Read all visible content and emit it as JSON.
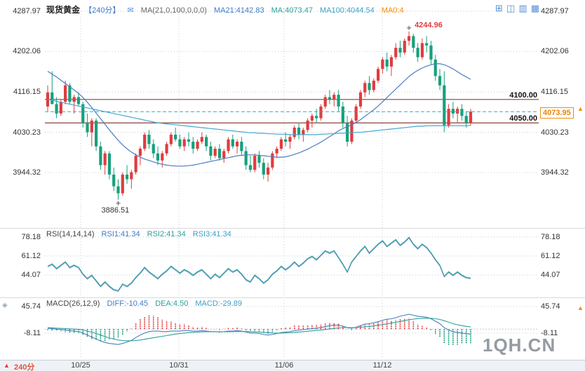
{
  "header": {
    "symbol": "现货黄金",
    "period": "【240分】",
    "ma_settings": "MA(21,0,100,0,0,0)",
    "legend": {
      "ma21": "MA21:4142.83",
      "ma": "MA:4073.47",
      "ma100": "MA100:4044.54",
      "ma0": "MA0:4"
    }
  },
  "toolbar": {
    "layout_icons": [
      "layout-single",
      "layout-split-2",
      "layout-rows",
      "layout-grid-4"
    ]
  },
  "rsi_header": {
    "title": "RSI(14,14,14)",
    "rsi1": "RSI1:41.34",
    "rsi2": "RSI2:41.34",
    "rsi3": "RSI3:41.34"
  },
  "macd_header": {
    "title": "MACD(26,12,9)",
    "diff": "DIFF:-10.45",
    "dea": "DEA:4.50",
    "macd": "MACD:-29.89"
  },
  "levels": {
    "upper": "4100.00",
    "lower": "4050.00"
  },
  "price_marker": {
    "value_label": "4073.95"
  },
  "annotations": {
    "high": "4244.96",
    "low": "3886.51"
  },
  "footer": {
    "period": "240分",
    "dates": [
      "10/25",
      "10/31",
      "11/06",
      "11/12"
    ]
  },
  "watermark": "1QH.CN",
  "colors": {
    "up": "#e03c3f",
    "down": "#17a07c",
    "ma21": "#4a7ebf",
    "ma100": "#45a8cc",
    "level_line": "#8a4038",
    "price_line": "#2fa9c9",
    "grid": "#c8cdd4",
    "accent_orange": "#f08c0a"
  },
  "chart_data": [
    {
      "type": "candlestick",
      "title": "现货黄金 240分",
      "y_ticks": [
        4287.97,
        4202.06,
        4116.15,
        4030.23,
        3944.32
      ],
      "x_ticks": [
        "10/25",
        "10/31",
        "11/06",
        "11/12"
      ],
      "hlines": [
        4100,
        4050
      ],
      "current_price": 4073.95,
      "high_annotation": 4244.96,
      "high_index": 82,
      "low_annotation": 3886.51,
      "low_index": 16,
      "candles": [
        [
          4085,
          4130,
          4075,
          4115
        ],
        [
          4115,
          4160,
          4100,
          4090
        ],
        [
          4090,
          4105,
          4060,
          4070
        ],
        [
          4070,
          4100,
          4065,
          4095
        ],
        [
          4095,
          4140,
          4090,
          4130
        ],
        [
          4130,
          4135,
          4090,
          4095
        ],
        [
          4095,
          4110,
          4070,
          4105
        ],
        [
          4105,
          4115,
          4085,
          4090
        ],
        [
          4090,
          4095,
          4040,
          4050
        ],
        [
          4050,
          4070,
          4020,
          4030
        ],
        [
          4030,
          4060,
          4000,
          4055
        ],
        [
          4055,
          4060,
          3990,
          4000
        ],
        [
          4000,
          4010,
          3950,
          3960
        ],
        [
          3960,
          3990,
          3940,
          3985
        ],
        [
          3985,
          3990,
          3930,
          3940
        ],
        [
          3940,
          3955,
          3905,
          3915
        ],
        [
          3915,
          3930,
          3886.51,
          3900
        ],
        [
          3900,
          3945,
          3895,
          3940
        ],
        [
          3940,
          3960,
          3920,
          3930
        ],
        [
          3930,
          3950,
          3910,
          3945
        ],
        [
          3945,
          3985,
          3940,
          3980
        ],
        [
          3980,
          4000,
          3960,
          3995
        ],
        [
          3995,
          4030,
          3990,
          4025
        ],
        [
          4025,
          4035,
          3995,
          4005
        ],
        [
          4005,
          4015,
          3975,
          3985
        ],
        [
          3985,
          4000,
          3960,
          3970
        ],
        [
          3970,
          3990,
          3955,
          3985
        ],
        [
          3985,
          4010,
          3980,
          4005
        ],
        [
          4005,
          4030,
          4000,
          4025
        ],
        [
          4025,
          4040,
          4010,
          4015
        ],
        [
          4015,
          4025,
          3995,
          4000
        ],
        [
          4000,
          4020,
          3990,
          4015
        ],
        [
          4015,
          4030,
          4000,
          4010
        ],
        [
          4010,
          4020,
          3985,
          3995
        ],
        [
          3995,
          4015,
          3990,
          4010
        ],
        [
          4010,
          4030,
          4005,
          4020
        ],
        [
          4020,
          4025,
          3990,
          4000
        ],
        [
          4000,
          4010,
          3970,
          3980
        ],
        [
          3980,
          4000,
          3975,
          3995
        ],
        [
          3995,
          4005,
          3970,
          3975
        ],
        [
          3975,
          3995,
          3965,
          3990
        ],
        [
          3990,
          4020,
          3985,
          4015
        ],
        [
          4015,
          4025,
          3995,
          4000
        ],
        [
          4000,
          4015,
          3985,
          4010
        ],
        [
          4010,
          4020,
          3980,
          3990
        ],
        [
          3990,
          4000,
          3950,
          3960
        ],
        [
          3960,
          3980,
          3945,
          3950
        ],
        [
          3950,
          3985,
          3945,
          3980
        ],
        [
          3980,
          3990,
          3955,
          3965
        ],
        [
          3965,
          3975,
          3930,
          3940
        ],
        [
          3940,
          3965,
          3925,
          3955
        ],
        [
          3955,
          3990,
          3950,
          3985
        ],
        [
          3985,
          4000,
          3975,
          3995
        ],
        [
          3995,
          4020,
          3990,
          4015
        ],
        [
          4015,
          4030,
          4000,
          4010
        ],
        [
          4010,
          4025,
          3995,
          4020
        ],
        [
          4020,
          4045,
          4015,
          4040
        ],
        [
          4040,
          4050,
          4015,
          4025
        ],
        [
          4025,
          4040,
          4010,
          4035
        ],
        [
          4035,
          4060,
          4030,
          4055
        ],
        [
          4055,
          4070,
          4040,
          4065
        ],
        [
          4065,
          4080,
          4050,
          4060
        ],
        [
          4060,
          4090,
          4055,
          4085
        ],
        [
          4085,
          4110,
          4080,
          4105
        ],
        [
          4105,
          4120,
          4090,
          4100
        ],
        [
          4100,
          4115,
          4085,
          4110
        ],
        [
          4110,
          4120,
          4075,
          4085
        ],
        [
          4085,
          4095,
          4040,
          4050
        ],
        [
          4050,
          4065,
          4000,
          4010
        ],
        [
          4010,
          4060,
          4005,
          4055
        ],
        [
          4055,
          4090,
          4050,
          4085
        ],
        [
          4085,
          4120,
          4080,
          4115
        ],
        [
          4115,
          4140,
          4105,
          4135
        ],
        [
          4135,
          4150,
          4110,
          4120
        ],
        [
          4120,
          4145,
          4115,
          4140
        ],
        [
          4140,
          4170,
          4135,
          4165
        ],
        [
          4165,
          4190,
          4155,
          4185
        ],
        [
          4185,
          4200,
          4160,
          4170
        ],
        [
          4170,
          4195,
          4150,
          4190
        ],
        [
          4190,
          4220,
          4185,
          4210
        ],
        [
          4210,
          4225,
          4190,
          4200
        ],
        [
          4200,
          4230,
          4195,
          4225
        ],
        [
          4225,
          4244.96,
          4215,
          4235
        ],
        [
          4235,
          4240,
          4200,
          4210
        ],
        [
          4210,
          4220,
          4180,
          4190
        ],
        [
          4190,
          4230,
          4185,
          4220
        ],
        [
          4220,
          4235,
          4200,
          4215
        ],
        [
          4215,
          4225,
          4175,
          4185
        ],
        [
          4185,
          4195,
          4140,
          4150
        ],
        [
          4150,
          4165,
          4120,
          4130
        ],
        [
          4130,
          4160,
          4030,
          4045
        ],
        [
          4045,
          4090,
          4040,
          4080
        ],
        [
          4080,
          4095,
          4060,
          4070
        ],
        [
          4070,
          4085,
          4050,
          4080
        ],
        [
          4080,
          4090,
          4055,
          4065
        ],
        [
          4065,
          4075,
          4040,
          4050
        ],
        [
          4050,
          4080,
          4045,
          4073.95
        ]
      ],
      "ma21": [
        4160,
        4154,
        4148,
        4141,
        4134,
        4127,
        4120,
        4113,
        4104,
        4094,
        4083,
        4071,
        4059,
        4047,
        4035,
        4024,
        4013,
        4003,
        3995,
        3988,
        3982,
        3977,
        3973,
        3970,
        3967,
        3964,
        3962,
        3960,
        3959,
        3958,
        3958,
        3958,
        3959,
        3960,
        3962,
        3964,
        3966,
        3968,
        3970,
        3972,
        3974,
        3976,
        3978,
        3980,
        3981,
        3982,
        3982,
        3982,
        3981,
        3980,
        3979,
        3978,
        3977,
        3977,
        3978,
        3980,
        3983,
        3986,
        3990,
        3994,
        3999,
        4004,
        4009,
        4015,
        4021,
        4027,
        4033,
        4038,
        4042,
        4046,
        4051,
        4057,
        4064,
        4071,
        4078,
        4086,
        4095,
        4104,
        4113,
        4122,
        4131,
        4140,
        4149,
        4156,
        4162,
        4167,
        4171,
        4174,
        4176,
        4176,
        4174,
        4170,
        4165,
        4159,
        4153,
        4148,
        4142.83
      ],
      "ma100": [
        4100,
        4098,
        4096,
        4094,
        4092,
        4090,
        4088,
        4086,
        4084,
        4082,
        4080,
        4078,
        4076,
        4074,
        4072,
        4070,
        4068,
        4066,
        4064,
        4062,
        4060,
        4058,
        4056,
        4054,
        4052,
        4050,
        4049,
        4048,
        4047,
        4046,
        4045,
        4044,
        4043,
        4042,
        4041,
        4040,
        4039,
        4038,
        4037,
        4036,
        4035,
        4034,
        4033,
        4032,
        4031,
        4030,
        4029,
        4029,
        4028,
        4028,
        4027,
        4027,
        4026,
        4026,
        4026,
        4025,
        4025,
        4025,
        4025,
        4025,
        4025,
        4025,
        4026,
        4026,
        4027,
        4027,
        4028,
        4028,
        4029,
        4029,
        4030,
        4030,
        4031,
        4032,
        4033,
        4034,
        4035,
        4036,
        4037,
        4038,
        4039,
        4040,
        4041,
        4042,
        4043,
        4043,
        4044,
        4044,
        4044,
        4044,
        4044,
        4044,
        4044,
        4044,
        4044,
        4044,
        4044.54
      ]
    },
    {
      "type": "line",
      "name": "RSI(14,14,14)",
      "y_ticks": [
        78.18,
        61.12,
        44.07
      ],
      "current": [
        41.34,
        41.34,
        41.34
      ],
      "values": [
        52,
        54,
        50,
        53,
        56,
        51,
        53,
        51,
        45,
        41,
        44,
        39,
        34,
        38,
        34,
        31,
        30,
        36,
        34,
        37,
        42,
        46,
        51,
        47,
        44,
        41,
        45,
        48,
        52,
        49,
        46,
        49,
        47,
        44,
        47,
        49,
        45,
        41,
        45,
        42,
        46,
        50,
        47,
        49,
        45,
        40,
        38,
        44,
        41,
        37,
        40,
        45,
        48,
        52,
        49,
        52,
        56,
        52,
        55,
        59,
        61,
        58,
        62,
        66,
        64,
        66,
        60,
        54,
        47,
        56,
        61,
        66,
        70,
        64,
        68,
        72,
        75,
        70,
        73,
        76,
        71,
        74,
        78,
        72,
        68,
        72,
        69,
        64,
        58,
        53,
        43,
        47,
        44,
        47,
        44,
        42,
        41.34
      ]
    },
    {
      "type": "macd",
      "name": "MACD(26,12,9)",
      "y_ticks": [
        45.74,
        -8.11
      ],
      "current": {
        "diff": -10.45,
        "dea": 4.5,
        "macd": -29.89
      },
      "hist_formula": "2*(diff-dea)",
      "diff": [
        2,
        1,
        0,
        -1,
        -2,
        -3,
        -4,
        -5,
        -8,
        -12,
        -16,
        -20,
        -24,
        -27,
        -29,
        -30,
        -31,
        -29,
        -26,
        -23,
        -17,
        -12,
        -8,
        -5,
        -4,
        -4,
        -5,
        -5,
        -4,
        -4,
        -4,
        -3,
        -3,
        -4,
        -4,
        -3,
        -4,
        -5,
        -5,
        -6,
        -5,
        -4,
        -4,
        -3,
        -4,
        -6,
        -8,
        -8,
        -9,
        -11,
        -12,
        -11,
        -9,
        -7,
        -6,
        -5,
        -3,
        -2,
        -1,
        0,
        1,
        2,
        3,
        5,
        7,
        8,
        8,
        6,
        3,
        2,
        4,
        7,
        10,
        11,
        13,
        15,
        18,
        20,
        21,
        23,
        26,
        28,
        30,
        28,
        26,
        25,
        24,
        21,
        16,
        11,
        3,
        -2,
        -5,
        -7,
        -8,
        -9,
        -10.45
      ],
      "dea": [
        3,
        2.5,
        2,
        1.5,
        1,
        0.5,
        0,
        -0.5,
        -2,
        -4,
        -6,
        -9,
        -12,
        -15,
        -18,
        -20,
        -22,
        -23,
        -23.5,
        -23.5,
        -23,
        -22,
        -20.5,
        -19,
        -17.5,
        -16,
        -14.5,
        -13,
        -11.5,
        -10,
        -9,
        -8,
        -7,
        -6.5,
        -6,
        -5.5,
        -5.2,
        -5.2,
        -5.2,
        -5.3,
        -5.3,
        -5.2,
        -5,
        -4.8,
        -4.7,
        -4.8,
        -5.2,
        -5.6,
        -6,
        -6.6,
        -7.3,
        -7.8,
        -8,
        -7.9,
        -7.6,
        -7.2,
        -6.6,
        -5.9,
        -5.1,
        -4.3,
        -3.5,
        -2.7,
        -1.9,
        -0.9,
        0.3,
        1.4,
        2.5,
        3.2,
        3.2,
        3,
        3.1,
        3.7,
        4.6,
        5.5,
        6.6,
        7.8,
        9.2,
        10.7,
        12.2,
        13.8,
        15.5,
        17.2,
        19,
        20.3,
        21.2,
        21.8,
        22.1,
        22,
        21,
        19.5,
        17,
        14,
        11,
        8.8,
        7,
        5.6,
        4.5
      ]
    }
  ]
}
